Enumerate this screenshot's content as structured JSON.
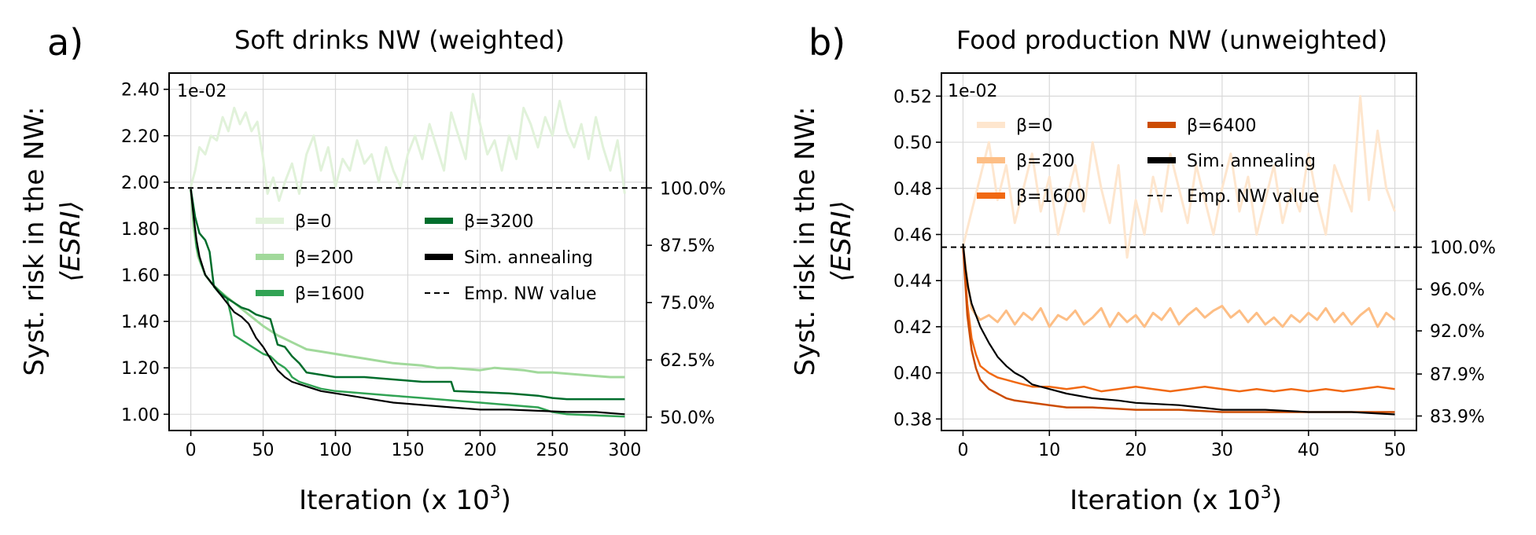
{
  "figure": {
    "panels": [
      "a)",
      "b)"
    ]
  },
  "chart_data": [
    {
      "type": "line",
      "panel_label": "a)",
      "title": "Soft drinks NW (weighted)",
      "xlabel": "Iteration (x 10",
      "xlabel_sup": "3",
      "xlabel_close": ")",
      "ylabel_line1": "Syst. risk in the NW:",
      "ylabel_line2": "⟨ESRI⟩",
      "offset_text": "1e-02",
      "xlim": [
        -15,
        315
      ],
      "ylim": [
        0.93,
        2.47
      ],
      "x_ticks": [
        0,
        50,
        100,
        150,
        200,
        250,
        300
      ],
      "x_tick_labels": [
        "0",
        "50",
        "100",
        "150",
        "200",
        "250",
        "300"
      ],
      "y_ticks": [
        1.0,
        1.2,
        1.4,
        1.6,
        1.8,
        2.0,
        2.2,
        2.4
      ],
      "y_tick_labels": [
        "1.00",
        "1.20",
        "1.40",
        "1.60",
        "1.80",
        "2.00",
        "2.20",
        "2.40"
      ],
      "right_ticks": [
        1.975,
        1.728,
        1.481,
        1.234,
        0.988
      ],
      "right_tick_labels": [
        "100.0%",
        "87.5%",
        "75.0%",
        "62.5%",
        "50.0%"
      ],
      "emp_value": 1.975,
      "series": [
        {
          "name": "β=0",
          "color": "#e1f2da",
          "width": 3,
          "x": [
            0,
            3,
            6,
            10,
            14,
            18,
            22,
            26,
            30,
            34,
            38,
            42,
            46,
            50,
            53,
            57,
            61,
            65,
            70,
            75,
            80,
            85,
            90,
            95,
            100,
            105,
            110,
            115,
            120,
            125,
            130,
            135,
            140,
            145,
            150,
            155,
            160,
            165,
            170,
            175,
            180,
            185,
            190,
            195,
            200,
            205,
            210,
            215,
            220,
            225,
            230,
            235,
            240,
            245,
            250,
            255,
            260,
            265,
            270,
            275,
            280,
            285,
            290,
            295,
            300
          ],
          "y": [
            1.98,
            2.05,
            2.15,
            2.12,
            2.2,
            2.18,
            2.28,
            2.22,
            2.32,
            2.25,
            2.3,
            2.22,
            2.26,
            2.1,
            1.95,
            2.02,
            1.92,
            2.0,
            2.08,
            1.95,
            2.12,
            2.2,
            2.05,
            2.15,
            1.98,
            2.1,
            2.05,
            2.18,
            2.08,
            2.12,
            2.0,
            2.15,
            2.05,
            1.98,
            2.12,
            2.2,
            2.1,
            2.25,
            2.15,
            2.05,
            2.3,
            2.2,
            2.1,
            2.38,
            2.25,
            2.12,
            2.18,
            2.05,
            2.2,
            2.1,
            2.32,
            2.25,
            2.15,
            2.28,
            2.2,
            2.35,
            2.22,
            2.15,
            2.25,
            2.1,
            2.28,
            2.15,
            2.05,
            2.18,
            1.95
          ]
        },
        {
          "name": "β=200",
          "color": "#a1d99b",
          "width": 3,
          "x": [
            0,
            2,
            5,
            10,
            15,
            20,
            30,
            40,
            50,
            60,
            70,
            80,
            90,
            100,
            110,
            120,
            130,
            140,
            150,
            160,
            170,
            180,
            190,
            200,
            210,
            220,
            230,
            240,
            250,
            260,
            270,
            280,
            290,
            300
          ],
          "y": [
            1.97,
            1.8,
            1.68,
            1.6,
            1.56,
            1.53,
            1.48,
            1.43,
            1.38,
            1.34,
            1.31,
            1.28,
            1.27,
            1.26,
            1.25,
            1.24,
            1.23,
            1.22,
            1.215,
            1.21,
            1.2,
            1.2,
            1.195,
            1.19,
            1.2,
            1.195,
            1.19,
            1.18,
            1.18,
            1.175,
            1.17,
            1.165,
            1.16,
            1.16
          ]
        },
        {
          "name": "β=1600",
          "color": "#31a354",
          "width": 2.5,
          "x": [
            0,
            2,
            4,
            7,
            10,
            15,
            20,
            25,
            28,
            30,
            35,
            40,
            45,
            50,
            55,
            60,
            65,
            68,
            70,
            75,
            80,
            90,
            100,
            120,
            140,
            160,
            180,
            200,
            220,
            240,
            250,
            260,
            280,
            300
          ],
          "y": [
            1.97,
            1.85,
            1.72,
            1.65,
            1.6,
            1.56,
            1.53,
            1.5,
            1.42,
            1.34,
            1.32,
            1.3,
            1.28,
            1.26,
            1.25,
            1.22,
            1.2,
            1.18,
            1.16,
            1.14,
            1.13,
            1.11,
            1.1,
            1.09,
            1.08,
            1.07,
            1.06,
            1.05,
            1.04,
            1.03,
            1.01,
            1.0,
            0.995,
            0.99
          ]
        },
        {
          "name": "β=3200",
          "color": "#006d2c",
          "width": 2.5,
          "x": [
            0,
            3,
            6,
            10,
            13,
            16,
            20,
            25,
            30,
            35,
            40,
            45,
            50,
            55,
            60,
            65,
            70,
            75,
            80,
            100,
            120,
            140,
            160,
            180,
            182,
            220,
            240,
            250,
            260,
            280,
            300
          ],
          "y": [
            1.97,
            1.85,
            1.78,
            1.75,
            1.7,
            1.55,
            1.52,
            1.5,
            1.48,
            1.46,
            1.45,
            1.43,
            1.42,
            1.41,
            1.3,
            1.29,
            1.25,
            1.22,
            1.18,
            1.16,
            1.16,
            1.15,
            1.14,
            1.14,
            1.1,
            1.09,
            1.08,
            1.07,
            1.065,
            1.065,
            1.065
          ]
        },
        {
          "name": "Sim. annealing",
          "color": "#000000",
          "width": 2.2,
          "x": [
            0,
            2,
            4,
            6,
            8,
            10,
            15,
            20,
            25,
            30,
            35,
            40,
            45,
            50,
            55,
            60,
            65,
            70,
            80,
            90,
            100,
            120,
            140,
            160,
            180,
            200,
            220,
            240,
            260,
            280,
            300
          ],
          "y": [
            1.97,
            1.85,
            1.75,
            1.68,
            1.64,
            1.6,
            1.56,
            1.52,
            1.48,
            1.44,
            1.42,
            1.39,
            1.33,
            1.29,
            1.24,
            1.19,
            1.16,
            1.14,
            1.12,
            1.1,
            1.09,
            1.07,
            1.05,
            1.04,
            1.03,
            1.02,
            1.02,
            1.015,
            1.01,
            1.01,
            1.0
          ]
        }
      ],
      "legend": {
        "col1": [
          "β=0",
          "β=200",
          "β=1600"
        ],
        "col2": [
          "β=3200",
          "Sim. annealing",
          "Emp. NW value"
        ]
      }
    },
    {
      "type": "line",
      "panel_label": "b)",
      "title": "Food production NW (unweighted)",
      "xlabel": "Iteration (x 10",
      "xlabel_sup": "3",
      "xlabel_close": ")",
      "ylabel_line1": "Syst. risk in the NW:",
      "ylabel_line2": "⟨ESRI⟩",
      "offset_text": "1e-02",
      "xlim": [
        -2.5,
        52.5
      ],
      "ylim": [
        0.375,
        0.53
      ],
      "x_ticks": [
        0,
        10,
        20,
        30,
        40,
        50
      ],
      "x_tick_labels": [
        "0",
        "10",
        "20",
        "30",
        "40",
        "50"
      ],
      "y_ticks": [
        0.38,
        0.4,
        0.42,
        0.44,
        0.46,
        0.48,
        0.5,
        0.52
      ],
      "y_tick_labels": [
        "0.38",
        "0.40",
        "0.42",
        "0.44",
        "0.46",
        "0.48",
        "0.50",
        "0.52"
      ],
      "right_ticks": [
        0.4545,
        0.4363,
        0.4182,
        0.3995,
        0.3813
      ],
      "right_tick_labels": [
        "100.0%",
        "96.0%",
        "92.0%",
        "87.9%",
        "83.9%"
      ],
      "emp_value": 0.4545,
      "series": [
        {
          "name": "β=0",
          "color": "#fee6ce",
          "width": 3,
          "x": [
            0,
            1,
            2,
            3,
            4,
            5,
            6,
            7,
            8,
            9,
            10,
            11,
            12,
            13,
            14,
            15,
            16,
            17,
            18,
            19,
            20,
            21,
            22,
            23,
            24,
            25,
            26,
            27,
            28,
            29,
            30,
            31,
            32,
            33,
            34,
            35,
            36,
            37,
            38,
            39,
            40,
            41,
            42,
            43,
            44,
            45,
            46,
            47,
            48,
            49,
            50
          ],
          "y": [
            0.455,
            0.47,
            0.485,
            0.5,
            0.475,
            0.49,
            0.465,
            0.48,
            0.495,
            0.47,
            0.485,
            0.46,
            0.475,
            0.49,
            0.47,
            0.5,
            0.48,
            0.465,
            0.49,
            0.45,
            0.475,
            0.46,
            0.485,
            0.47,
            0.495,
            0.48,
            0.465,
            0.49,
            0.475,
            0.46,
            0.48,
            0.495,
            0.47,
            0.485,
            0.46,
            0.475,
            0.49,
            0.465,
            0.48,
            0.47,
            0.495,
            0.475,
            0.46,
            0.49,
            0.48,
            0.47,
            0.52,
            0.475,
            0.505,
            0.48,
            0.47
          ]
        },
        {
          "name": "β=200",
          "color": "#fdbe85",
          "width": 3,
          "x": [
            0,
            0.5,
            1,
            1.5,
            2,
            3,
            4,
            5,
            6,
            7,
            8,
            9,
            10,
            11,
            12,
            13,
            14,
            15,
            16,
            17,
            18,
            19,
            20,
            21,
            22,
            23,
            24,
            25,
            26,
            27,
            28,
            29,
            30,
            31,
            32,
            33,
            34,
            35,
            36,
            37,
            38,
            39,
            40,
            41,
            42,
            43,
            44,
            45,
            46,
            47,
            48,
            49,
            50
          ],
          "y": [
            0.455,
            0.44,
            0.428,
            0.425,
            0.423,
            0.425,
            0.422,
            0.427,
            0.421,
            0.426,
            0.423,
            0.428,
            0.42,
            0.425,
            0.423,
            0.427,
            0.421,
            0.424,
            0.428,
            0.42,
            0.426,
            0.422,
            0.425,
            0.42,
            0.426,
            0.423,
            0.428,
            0.421,
            0.425,
            0.428,
            0.424,
            0.427,
            0.429,
            0.424,
            0.427,
            0.422,
            0.426,
            0.421,
            0.424,
            0.42,
            0.425,
            0.422,
            0.426,
            0.423,
            0.428,
            0.422,
            0.426,
            0.421,
            0.425,
            0.428,
            0.42,
            0.426,
            0.423
          ]
        },
        {
          "name": "β=1600",
          "color": "#f16913",
          "width": 2.5,
          "x": [
            0,
            0.5,
            1,
            1.5,
            2,
            3,
            4,
            5,
            6,
            7,
            8,
            10,
            12,
            14,
            16,
            18,
            20,
            22,
            24,
            26,
            28,
            30,
            32,
            34,
            36,
            38,
            40,
            42,
            44,
            46,
            48,
            50
          ],
          "y": [
            0.455,
            0.43,
            0.415,
            0.408,
            0.403,
            0.4,
            0.398,
            0.397,
            0.396,
            0.395,
            0.394,
            0.394,
            0.393,
            0.394,
            0.392,
            0.393,
            0.394,
            0.393,
            0.392,
            0.393,
            0.394,
            0.393,
            0.392,
            0.393,
            0.392,
            0.393,
            0.392,
            0.393,
            0.392,
            0.393,
            0.394,
            0.393
          ]
        },
        {
          "name": "β=6400",
          "color": "#cc4c02",
          "width": 2.5,
          "x": [
            0,
            0.5,
            1,
            1.5,
            2,
            3,
            4,
            5,
            6,
            8,
            10,
            12,
            15,
            20,
            25,
            30,
            35,
            40,
            45,
            50
          ],
          "y": [
            0.455,
            0.425,
            0.41,
            0.402,
            0.397,
            0.393,
            0.391,
            0.389,
            0.388,
            0.387,
            0.386,
            0.385,
            0.385,
            0.384,
            0.384,
            0.383,
            0.383,
            0.383,
            0.383,
            0.383
          ]
        },
        {
          "name": "Sim. annealing",
          "color": "#000000",
          "width": 2.2,
          "x": [
            0,
            0.3,
            0.6,
            1,
            1.5,
            2,
            3,
            4,
            5,
            6,
            7,
            8,
            10,
            12,
            15,
            18,
            20,
            25,
            30,
            35,
            40,
            45,
            50
          ],
          "y": [
            0.456,
            0.445,
            0.437,
            0.43,
            0.425,
            0.42,
            0.413,
            0.407,
            0.403,
            0.4,
            0.398,
            0.395,
            0.393,
            0.391,
            0.389,
            0.388,
            0.387,
            0.386,
            0.384,
            0.384,
            0.383,
            0.383,
            0.382
          ]
        }
      ],
      "legend": {
        "col1": [
          "β=0",
          "β=200",
          "β=1600"
        ],
        "col2": [
          "β=6400",
          "Sim. annealing",
          "Emp. NW value"
        ]
      }
    }
  ]
}
